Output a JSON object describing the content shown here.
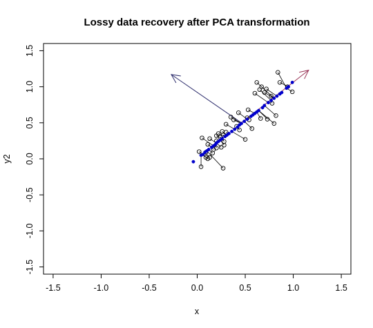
{
  "chart_data": {
    "type": "scatter",
    "title": "Lossy data recovery after PCA transformation",
    "xlabel": "x",
    "ylabel": "y2",
    "xlim": [
      -1.6,
      1.6
    ],
    "ylim": [
      -1.6,
      1.6
    ],
    "xticks": [
      -1.5,
      -1.0,
      -0.5,
      0.0,
      0.5,
      1.0,
      1.5
    ],
    "yticks": [
      -1.5,
      -1.0,
      -0.5,
      0.0,
      0.5,
      1.0,
      1.5
    ],
    "xtick_labels": [
      "-1.5",
      "-1.0",
      "-0.5",
      "0.0",
      "0.5",
      "1.0",
      "1.5"
    ],
    "ytick_labels": [
      "-1.5",
      "-1.0",
      "-0.5",
      "0.0",
      "0.5",
      "1.0",
      "1.5"
    ],
    "grid": false,
    "series": [
      {
        "marker": "open-circle",
        "color": "#000000",
        "points": [
          [
            0.84,
            1.2
          ],
          [
            0.86,
            1.06
          ],
          [
            0.94,
            1.0
          ],
          [
            0.99,
            0.93
          ],
          [
            0.62,
            1.06
          ],
          [
            0.65,
            0.96
          ],
          [
            0.67,
            1.0
          ],
          [
            0.72,
            0.97
          ],
          [
            0.7,
            0.92
          ],
          [
            0.77,
            0.87
          ],
          [
            0.6,
            0.91
          ],
          [
            0.78,
            0.77
          ],
          [
            0.82,
            0.6
          ],
          [
            0.8,
            0.49
          ],
          [
            0.73,
            0.55
          ],
          [
            0.66,
            0.56
          ],
          [
            0.53,
            0.68
          ],
          [
            0.52,
            0.57
          ],
          [
            0.54,
            0.54
          ],
          [
            0.57,
            0.42
          ],
          [
            0.43,
            0.64
          ],
          [
            0.35,
            0.58
          ],
          [
            0.38,
            0.54
          ],
          [
            0.41,
            0.45
          ],
          [
            0.3,
            0.48
          ],
          [
            0.5,
            0.27
          ],
          [
            0.44,
            0.4
          ],
          [
            0.3,
            0.37
          ],
          [
            0.26,
            0.38
          ],
          [
            0.22,
            0.35
          ],
          [
            0.27,
            0.33
          ],
          [
            0.24,
            0.3
          ],
          [
            0.2,
            0.32
          ],
          [
            0.2,
            0.25
          ],
          [
            0.28,
            0.24
          ],
          [
            0.28,
            0.19
          ],
          [
            0.25,
            0.16
          ],
          [
            0.2,
            0.15
          ],
          [
            0.17,
            0.13
          ],
          [
            0.11,
            0.2
          ],
          [
            0.05,
            0.29
          ],
          [
            0.13,
            0.28
          ],
          [
            0.09,
            0.09
          ],
          [
            0.16,
            0.08
          ],
          [
            0.02,
            0.1
          ],
          [
            0.11,
            0.0
          ],
          [
            0.13,
            0.02
          ],
          [
            0.09,
            0.02
          ],
          [
            0.27,
            -0.13
          ],
          [
            0.04,
            -0.11
          ]
        ]
      },
      {
        "marker": "filled-circle",
        "color": "#0000cc",
        "points": [
          [
            0.99,
            1.06
          ],
          [
            0.95,
            1.0
          ],
          [
            0.93,
            0.98
          ],
          [
            0.88,
            0.92
          ],
          [
            0.86,
            0.9
          ],
          [
            0.83,
            0.87
          ],
          [
            0.8,
            0.84
          ],
          [
            0.77,
            0.81
          ],
          [
            0.74,
            0.78
          ],
          [
            0.7,
            0.74
          ],
          [
            0.68,
            0.71
          ],
          [
            0.64,
            0.67
          ],
          [
            0.62,
            0.65
          ],
          [
            0.6,
            0.63
          ],
          [
            0.58,
            0.61
          ],
          [
            0.56,
            0.59
          ],
          [
            0.52,
            0.55
          ],
          [
            0.49,
            0.52
          ],
          [
            0.46,
            0.49
          ],
          [
            0.44,
            0.47
          ],
          [
            0.42,
            0.44
          ],
          [
            0.39,
            0.41
          ],
          [
            0.36,
            0.38
          ],
          [
            0.33,
            0.35
          ],
          [
            0.31,
            0.33
          ],
          [
            0.29,
            0.31
          ],
          [
            0.26,
            0.28
          ],
          [
            0.24,
            0.26
          ],
          [
            0.22,
            0.24
          ],
          [
            0.2,
            0.22
          ],
          [
            0.19,
            0.2
          ],
          [
            0.17,
            0.18
          ],
          [
            0.15,
            0.16
          ],
          [
            0.12,
            0.13
          ],
          [
            0.1,
            0.11
          ],
          [
            0.08,
            0.09
          ],
          [
            0.06,
            0.06
          ],
          [
            0.04,
            0.05
          ],
          [
            -0.04,
            -0.04
          ]
        ]
      }
    ],
    "connectors": [
      [
        [
          0.84,
          1.2
        ],
        [
          0.93,
          0.98
        ]
      ],
      [
        [
          0.86,
          1.06
        ],
        [
          0.95,
          1.0
        ]
      ],
      [
        [
          0.94,
          1.0
        ],
        [
          0.95,
          1.0
        ]
      ],
      [
        [
          0.99,
          0.93
        ],
        [
          0.93,
          0.98
        ]
      ],
      [
        [
          0.62,
          1.06
        ],
        [
          0.8,
          0.84
        ]
      ],
      [
        [
          0.65,
          0.96
        ],
        [
          0.77,
          0.81
        ]
      ],
      [
        [
          0.67,
          1.0
        ],
        [
          0.8,
          0.84
        ]
      ],
      [
        [
          0.72,
          0.97
        ],
        [
          0.83,
          0.87
        ]
      ],
      [
        [
          0.7,
          0.92
        ],
        [
          0.8,
          0.84
        ]
      ],
      [
        [
          0.77,
          0.87
        ],
        [
          0.8,
          0.84
        ]
      ],
      [
        [
          0.6,
          0.91
        ],
        [
          0.74,
          0.78
        ]
      ],
      [
        [
          0.78,
          0.77
        ],
        [
          0.77,
          0.81
        ]
      ],
      [
        [
          0.82,
          0.6
        ],
        [
          0.7,
          0.74
        ]
      ],
      [
        [
          0.8,
          0.49
        ],
        [
          0.64,
          0.67
        ]
      ],
      [
        [
          0.73,
          0.55
        ],
        [
          0.64,
          0.67
        ]
      ],
      [
        [
          0.66,
          0.56
        ],
        [
          0.62,
          0.65
        ]
      ],
      [
        [
          0.53,
          0.68
        ],
        [
          0.6,
          0.63
        ]
      ],
      [
        [
          0.52,
          0.57
        ],
        [
          0.56,
          0.59
        ]
      ],
      [
        [
          0.54,
          0.54
        ],
        [
          0.52,
          0.55
        ]
      ],
      [
        [
          0.57,
          0.42
        ],
        [
          0.49,
          0.52
        ]
      ],
      [
        [
          0.43,
          0.64
        ],
        [
          0.52,
          0.55
        ]
      ],
      [
        [
          0.35,
          0.58
        ],
        [
          0.46,
          0.49
        ]
      ],
      [
        [
          0.38,
          0.54
        ],
        [
          0.46,
          0.49
        ]
      ],
      [
        [
          0.41,
          0.45
        ],
        [
          0.42,
          0.44
        ]
      ],
      [
        [
          0.3,
          0.48
        ],
        [
          0.39,
          0.41
        ]
      ],
      [
        [
          0.5,
          0.27
        ],
        [
          0.36,
          0.38
        ]
      ],
      [
        [
          0.44,
          0.4
        ],
        [
          0.42,
          0.44
        ]
      ],
      [
        [
          0.3,
          0.37
        ],
        [
          0.33,
          0.35
        ]
      ],
      [
        [
          0.26,
          0.38
        ],
        [
          0.31,
          0.33
        ]
      ],
      [
        [
          0.22,
          0.35
        ],
        [
          0.29,
          0.31
        ]
      ],
      [
        [
          0.27,
          0.33
        ],
        [
          0.29,
          0.31
        ]
      ],
      [
        [
          0.24,
          0.3
        ],
        [
          0.26,
          0.28
        ]
      ],
      [
        [
          0.2,
          0.32
        ],
        [
          0.26,
          0.28
        ]
      ],
      [
        [
          0.2,
          0.25
        ],
        [
          0.22,
          0.24
        ]
      ],
      [
        [
          0.28,
          0.24
        ],
        [
          0.26,
          0.28
        ]
      ],
      [
        [
          0.28,
          0.19
        ],
        [
          0.24,
          0.26
        ]
      ],
      [
        [
          0.25,
          0.16
        ],
        [
          0.2,
          0.22
        ]
      ],
      [
        [
          0.2,
          0.15
        ],
        [
          0.19,
          0.2
        ]
      ],
      [
        [
          0.17,
          0.13
        ],
        [
          0.15,
          0.16
        ]
      ],
      [
        [
          0.11,
          0.2
        ],
        [
          0.15,
          0.16
        ]
      ],
      [
        [
          0.05,
          0.29
        ],
        [
          0.17,
          0.18
        ]
      ],
      [
        [
          0.13,
          0.28
        ],
        [
          0.2,
          0.22
        ]
      ],
      [
        [
          0.09,
          0.09
        ],
        [
          0.1,
          0.11
        ]
      ],
      [
        [
          0.16,
          0.08
        ],
        [
          0.12,
          0.13
        ]
      ],
      [
        [
          0.02,
          0.1
        ],
        [
          0.06,
          0.06
        ]
      ],
      [
        [
          0.11,
          0.0
        ],
        [
          0.06,
          0.06
        ]
      ],
      [
        [
          0.13,
          0.02
        ],
        [
          0.08,
          0.09
        ]
      ],
      [
        [
          0.09,
          0.02
        ],
        [
          0.06,
          0.06
        ]
      ],
      [
        [
          0.27,
          -0.13
        ],
        [
          0.1,
          0.11
        ]
      ],
      [
        [
          0.04,
          -0.11
        ],
        [
          0.04,
          0.05
        ]
      ]
    ],
    "arrows": [
      {
        "from": [
          0.46,
          0.5
        ],
        "to": [
          -0.27,
          1.17
        ],
        "color": "#2b2b6b"
      },
      {
        "from": [
          0.46,
          0.5
        ],
        "to": [
          1.16,
          1.23
        ],
        "color": "#993355"
      }
    ]
  }
}
